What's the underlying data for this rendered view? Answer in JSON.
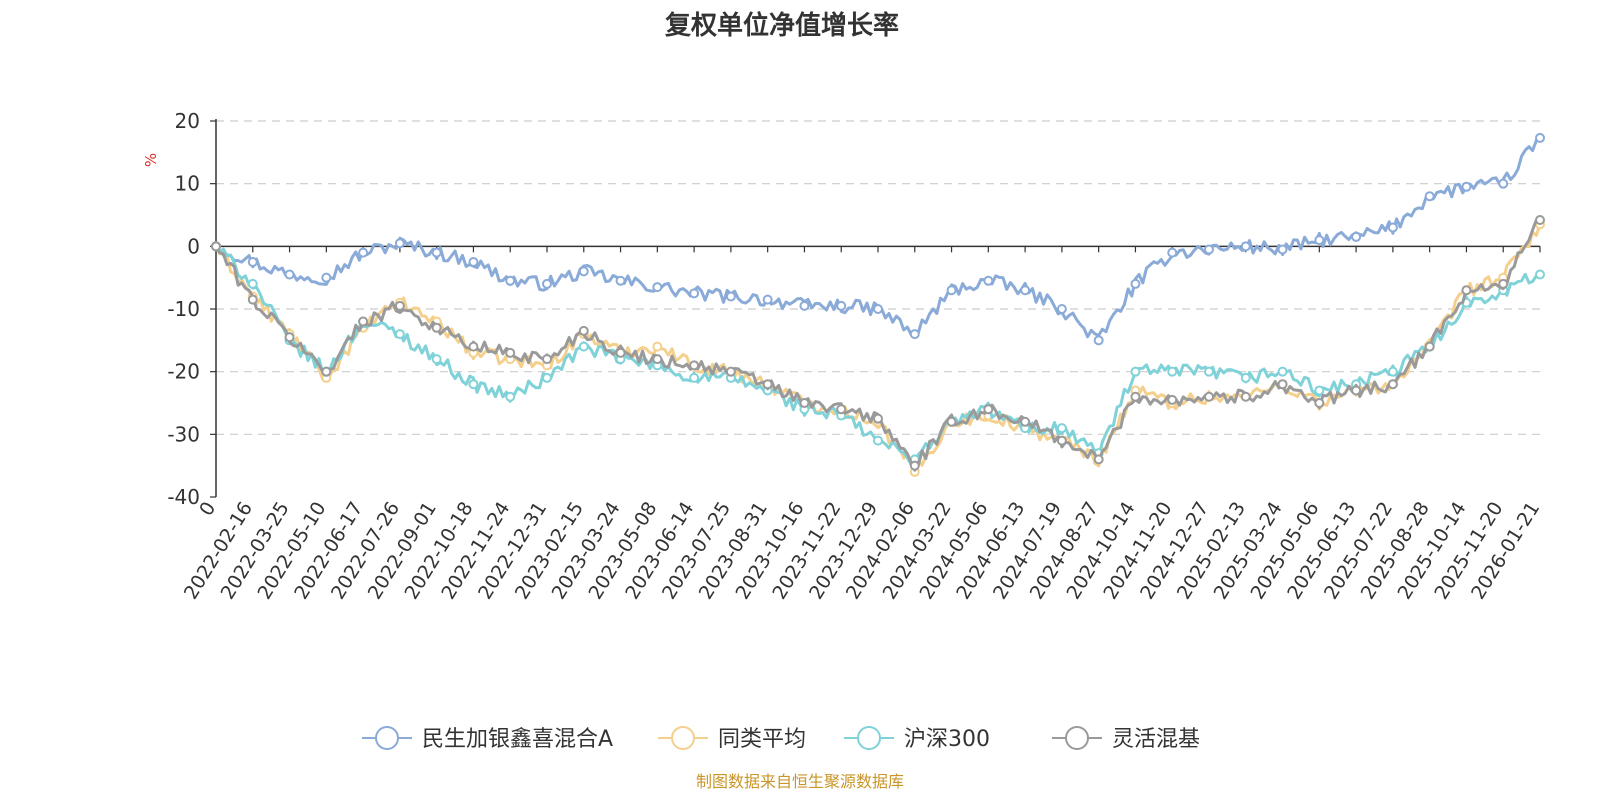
{
  "chart_data": {
    "type": "line",
    "title": "复权单位净值增长率",
    "ylabel": "%",
    "xlabel": "",
    "ylim": [
      -40,
      20
    ],
    "yticks": [
      20,
      10,
      0,
      -10,
      -20,
      -30,
      -40
    ],
    "grid": true,
    "legend_position": "bottom-center",
    "source": "制图数据来自恒生聚源数据库",
    "x_categories": [
      "0",
      "2022-02-16",
      "2022-03-25",
      "2022-05-10",
      "2022-06-17",
      "2022-07-26",
      "2022-09-01",
      "2022-10-18",
      "2022-11-24",
      "2022-12-31",
      "2023-02-15",
      "2023-03-24",
      "2023-05-08",
      "2023-06-14",
      "2023-07-25",
      "2023-08-31",
      "2023-10-16",
      "2023-11-22",
      "2023-12-29",
      "2024-02-06",
      "2024-03-22",
      "2024-05-06",
      "2024-06-13",
      "2024-07-19",
      "2024-08-27",
      "2024-10-14",
      "2024-11-20",
      "2024-12-27",
      "2025-02-13",
      "2025-03-24",
      "2025-05-06",
      "2025-06-13",
      "2025-07-22",
      "2025-08-28",
      "2025-10-14",
      "2025-11-20",
      "2026-01-21"
    ],
    "series": [
      {
        "name": "民生加银鑫喜混合A",
        "color": "#8aaad8",
        "values": [
          0,
          -2.5,
          -4.5,
          -5,
          -1,
          0.5,
          -1,
          -2.5,
          -5.5,
          -6,
          -4,
          -5.5,
          -6.5,
          -7.5,
          -8,
          -8.5,
          -9.5,
          -9.5,
          -10,
          -14,
          -7,
          -5.5,
          -7,
          -10,
          -15,
          -6,
          -1,
          -0.5,
          0,
          -0.5,
          1,
          1.5,
          3,
          8,
          9.5,
          10,
          17.3
        ]
      },
      {
        "name": "同类平均",
        "color": "#f5cf8c",
        "values": [
          0,
          -8,
          -14,
          -21,
          -13,
          -9,
          -12,
          -17,
          -18,
          -19,
          -14,
          -17,
          -16,
          -19,
          -20,
          -22,
          -25,
          -26,
          -28,
          -36,
          -28,
          -27,
          -29,
          -31,
          -34,
          -23,
          -25,
          -24,
          -24,
          -22,
          -25,
          -23,
          -22,
          -16,
          -7,
          -5,
          3.5
        ]
      },
      {
        "name": "沪深300",
        "color": "#7fd2d8",
        "values": [
          0,
          -6,
          -15,
          -20,
          -12,
          -14,
          -18,
          -22,
          -24,
          -21,
          -16,
          -18,
          -19,
          -21,
          -21,
          -23,
          -26,
          -27,
          -31,
          -34,
          -28,
          -26,
          -29,
          -29,
          -33,
          -20,
          -20,
          -20,
          -21,
          -20,
          -23,
          -22,
          -20,
          -16,
          -9,
          -7,
          -4.5
        ]
      },
      {
        "name": "灵活混基",
        "color": "#9a9a9a",
        "values": [
          0,
          -8.5,
          -14.5,
          -20,
          -12,
          -9.5,
          -13,
          -16,
          -17,
          -18,
          -13.5,
          -17,
          -18,
          -19,
          -20,
          -22,
          -25,
          -26,
          -27.5,
          -35,
          -28,
          -26,
          -28,
          -31,
          -34,
          -24,
          -24.5,
          -24,
          -24,
          -22,
          -25,
          -23,
          -22,
          -16,
          -7,
          -6,
          4.2
        ]
      }
    ]
  }
}
